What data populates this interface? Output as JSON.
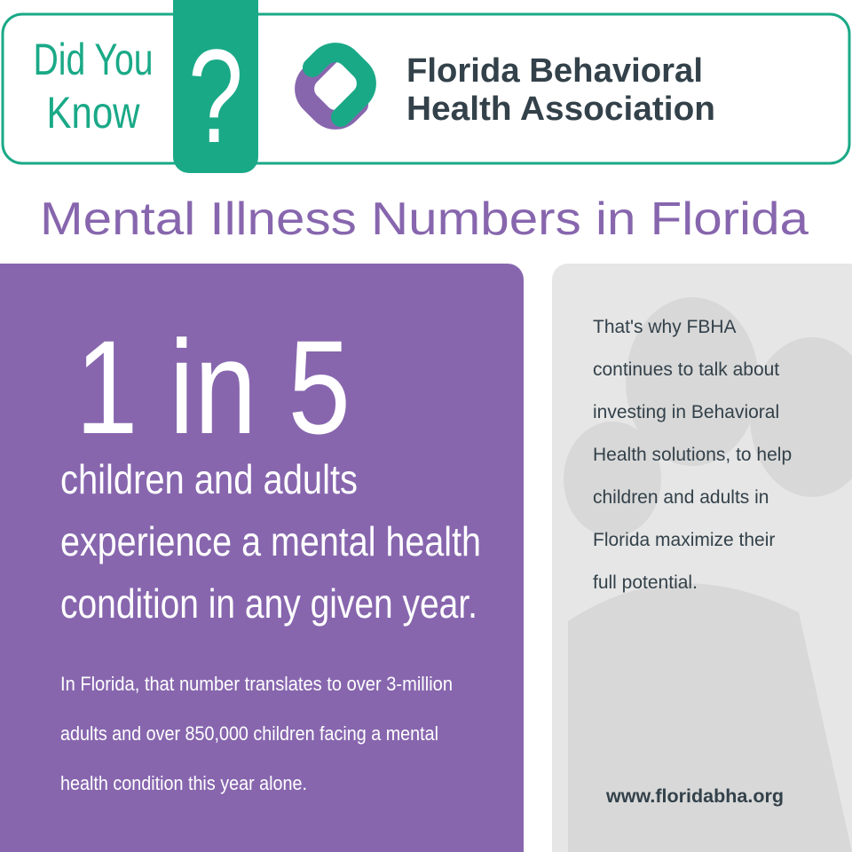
{
  "header": {
    "badge_lines": [
      "Did You",
      "Know"
    ],
    "badge_symbol": "?",
    "org_lines": [
      "Florida Behavioral",
      "Health Association"
    ]
  },
  "title": "Mental Illness Numbers in Florida",
  "stat_panel": {
    "headline": "1 in 5",
    "statement_lines": [
      "children and adults",
      "experience a mental health",
      "condition in any given year."
    ],
    "detail_lines": [
      "In Florida, that number translates to over 3-million",
      "adults and over 850,000 children facing a mental",
      "health condition this year alone."
    ]
  },
  "side_panel": {
    "message_lines": [
      "That's why FBHA",
      "continues to talk about",
      "investing in Behavioral",
      "Health solutions, to help",
      "children and adults in",
      "Florida maximize their",
      "full potential."
    ],
    "url": "www.floridabha.org"
  }
}
